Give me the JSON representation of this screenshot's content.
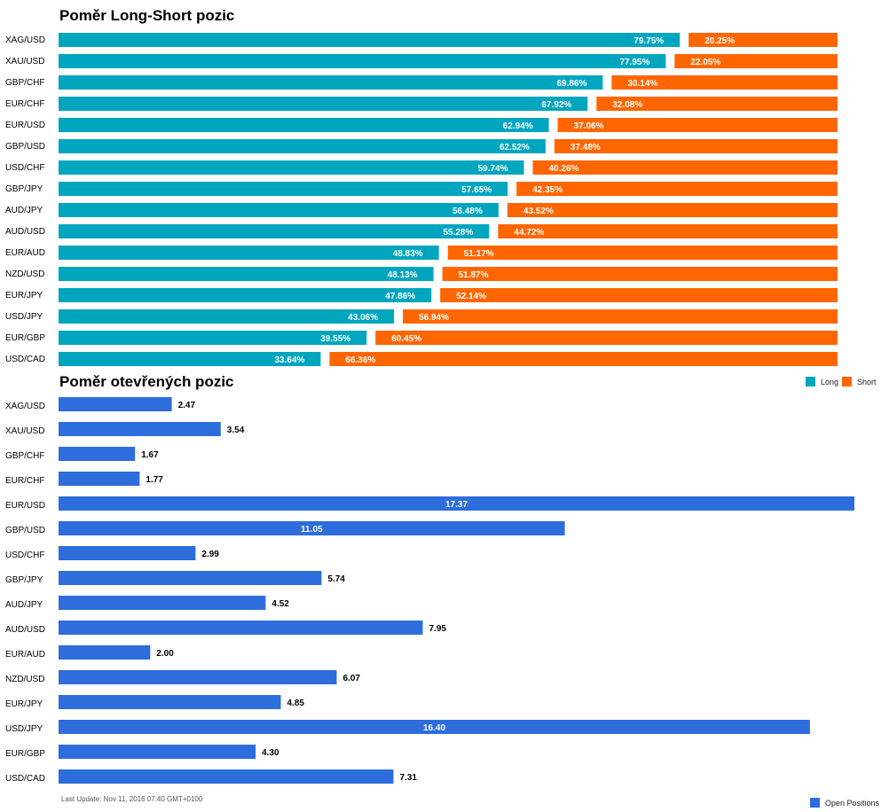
{
  "colors": {
    "long": "#00a6be",
    "short": "#ff6600",
    "open": "#2d6ddc"
  },
  "chart_data": [
    {
      "type": "bar",
      "orientation": "horizontal",
      "stacked": true,
      "title": "Poměr Long-Short pozic",
      "categories": [
        "XAG/USD",
        "XAU/USD",
        "GBP/CHF",
        "EUR/CHF",
        "EUR/USD",
        "GBP/USD",
        "USD/CHF",
        "GBP/JPY",
        "AUD/JPY",
        "AUD/USD",
        "EUR/AUD",
        "NZD/USD",
        "EUR/JPY",
        "USD/JPY",
        "EUR/GBP",
        "USD/CAD"
      ],
      "series": [
        {
          "name": "Long",
          "values": [
            79.75,
            77.95,
            69.86,
            67.92,
            62.94,
            62.52,
            59.74,
            57.65,
            56.48,
            55.28,
            48.83,
            48.13,
            47.86,
            43.06,
            39.55,
            33.64
          ],
          "labels": [
            "79.75%",
            "77.95%",
            "69.86%",
            "67.92%",
            "62.94%",
            "62.52%",
            "59.74%",
            "57.65%",
            "56.48%",
            "55.28%",
            "48.83%",
            "48.13%",
            "47.86%",
            "43.06%",
            "39.55%",
            "33.64%"
          ]
        },
        {
          "name": "Short",
          "values": [
            20.25,
            22.05,
            30.14,
            32.08,
            37.06,
            37.48,
            40.26,
            42.35,
            43.52,
            44.72,
            51.17,
            51.87,
            52.14,
            56.94,
            60.45,
            66.36
          ],
          "labels": [
            "20.25%",
            "22.05%",
            "30.14%",
            "32.08%",
            "37.06%",
            "37.48%",
            "40.26%",
            "42.35%",
            "43.52%",
            "44.72%",
            "51.17%",
            "51.87%",
            "52.14%",
            "56.94%",
            "60.45%",
            "66.36%"
          ]
        }
      ],
      "xlim": [
        0,
        100
      ],
      "legend": "bottom-right"
    },
    {
      "type": "bar",
      "orientation": "horizontal",
      "title": "Poměr otevřených pozic",
      "categories": [
        "XAG/USD",
        "XAU/USD",
        "GBP/CHF",
        "EUR/CHF",
        "EUR/USD",
        "GBP/USD",
        "USD/CHF",
        "GBP/JPY",
        "AUD/JPY",
        "AUD/USD",
        "EUR/AUD",
        "NZD/USD",
        "EUR/JPY",
        "USD/JPY",
        "EUR/GBP",
        "USD/CAD"
      ],
      "series": [
        {
          "name": "Open Positions",
          "values": [
            2.47,
            3.54,
            1.67,
            1.77,
            17.37,
            11.05,
            2.99,
            5.74,
            4.52,
            7.95,
            2.0,
            6.07,
            4.85,
            16.4,
            4.3,
            7.31
          ],
          "labels": [
            "2.47",
            "3.54",
            "1.67",
            "1.77",
            "17.37",
            "11.05",
            "2.99",
            "5.74",
            "4.52",
            "7.95",
            "2.00",
            "6.07",
            "4.85",
            "16.40",
            "4.30",
            "7.31"
          ]
        }
      ],
      "xlim": [
        0,
        17.37
      ],
      "legend": "bottom-right"
    }
  ],
  "legend": {
    "long": "Long",
    "short": "Short",
    "open": "Open Positions"
  },
  "footer": "Last Update: Nov 11, 2016 07:40 GMT+0100"
}
